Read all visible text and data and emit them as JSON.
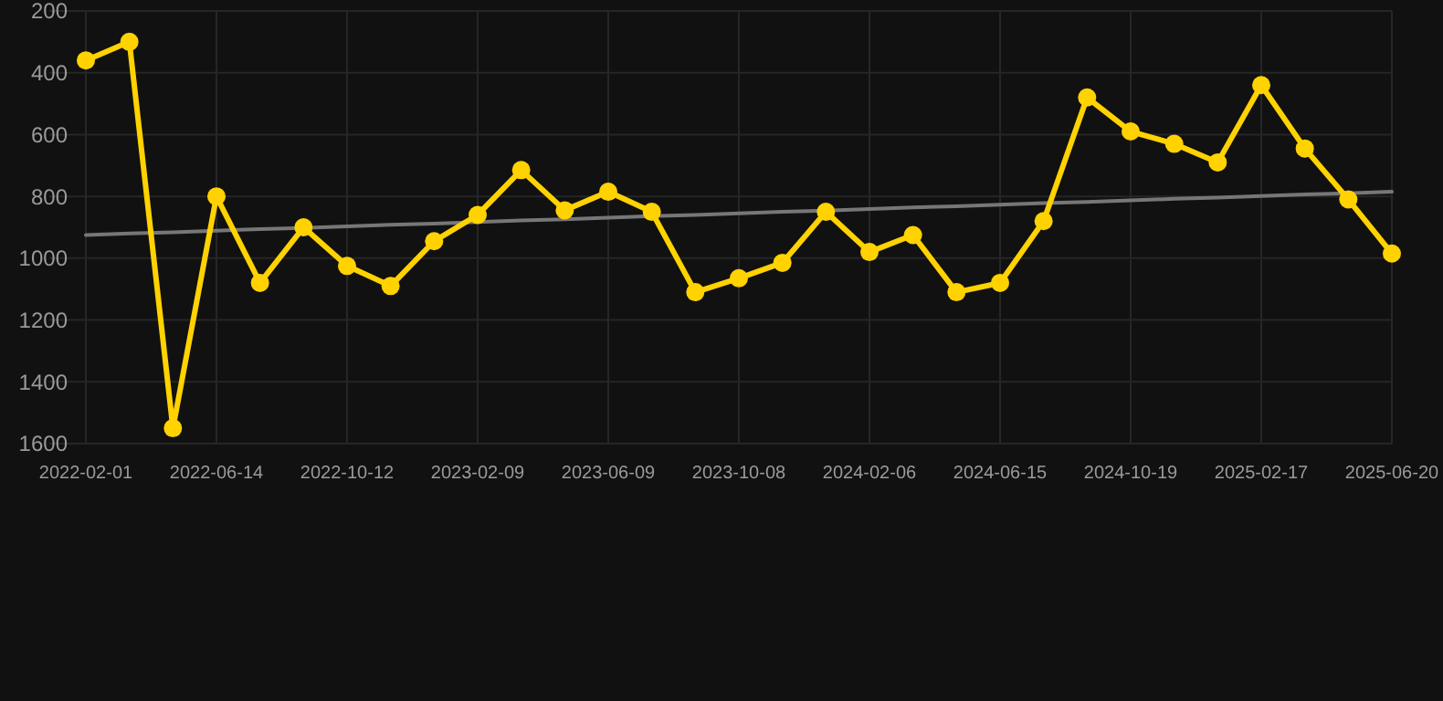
{
  "chart_data": {
    "type": "line",
    "categories": [
      "2022-02-01",
      null,
      null,
      "2022-06-14",
      null,
      null,
      "2022-10-12",
      null,
      null,
      "2023-02-09",
      null,
      null,
      "2023-06-09",
      null,
      null,
      "2023-10-08",
      null,
      null,
      "2024-02-06",
      null,
      null,
      "2024-06-15",
      null,
      null,
      "2024-10-19",
      null,
      null,
      "2025-02-17",
      null,
      null,
      "2025-06-20"
    ],
    "series": [
      {
        "color": "#ffd200",
        "values": [
          360,
          300,
          1550,
          800,
          1080,
          900,
          1025,
          1090,
          945,
          860,
          715,
          845,
          785,
          850,
          1110,
          1065,
          1015,
          850,
          980,
          925,
          1110,
          1080,
          880,
          480,
          590,
          630,
          690,
          440,
          645,
          810,
          985
        ]
      },
      {
        "type": "line",
        "color": "#777777",
        "marker": "none",
        "values": [
          925,
          920,
          916,
          911,
          906,
          902,
          897,
          892,
          888,
          883,
          878,
          874,
          869,
          864,
          860,
          855,
          850,
          846,
          841,
          836,
          832,
          827,
          822,
          818,
          813,
          808,
          804,
          799,
          794,
          790,
          785
        ]
      }
    ],
    "ylim": [
      1600,
      200
    ],
    "yticks": [
      200,
      400,
      600,
      800,
      1000,
      1200,
      1400,
      1600
    ],
    "grid": true,
    "marker": "circle"
  }
}
